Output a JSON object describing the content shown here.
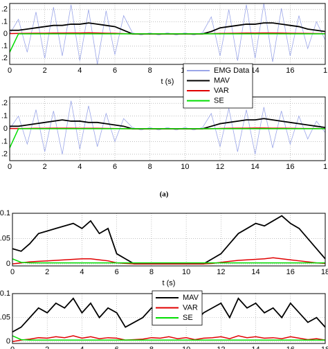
{
  "chart_data": [
    {
      "type": "line",
      "x": [
        0,
        0.5,
        1,
        1.5,
        2,
        2.5,
        3,
        3.5,
        4,
        4.5,
        5,
        5.5,
        6,
        6.5,
        7,
        7.5,
        8,
        8.5,
        9,
        9.5,
        10,
        10.5,
        11,
        11.5,
        12,
        12.5,
        13,
        13.5,
        14,
        14.5,
        15,
        15.5,
        16,
        16.5,
        17,
        17.5,
        18
      ],
      "xlim": [
        0,
        18
      ],
      "xticks": [
        0,
        2,
        4,
        6,
        8,
        10,
        12,
        14,
        16,
        {
          "value": 18,
          "label": "1"
        }
      ],
      "ylim": [
        -0.25,
        0.25
      ],
      "yticks": [
        {
          "value": 0.2,
          "label": ".2"
        },
        {
          "value": 0.1,
          "label": ".1"
        },
        0,
        {
          "value": -0.1,
          "label": ".1"
        },
        {
          "value": -0.2,
          "label": ".2"
        }
      ],
      "xlabel": "t (s)",
      "grid": true,
      "legend": "south",
      "series": [
        {
          "name": "EMG Data",
          "color": "#9aa5e8",
          "values": [
            0,
            0.12,
            -0.15,
            0.18,
            -0.2,
            0.22,
            -0.18,
            0.24,
            -0.22,
            0.2,
            -0.25,
            0.19,
            -0.17,
            0.15,
            0.01,
            -0.01,
            0.01,
            -0.01,
            0.01,
            -0.01,
            0.01,
            -0.01,
            0.01,
            0.14,
            -0.18,
            0.2,
            -0.22,
            0.24,
            -0.2,
            0.25,
            -0.23,
            0.21,
            -0.18,
            0.15,
            -0.12,
            0.1,
            -0.05
          ]
        },
        {
          "name": "MAV",
          "color": "#000000",
          "values": [
            0.03,
            0.03,
            0.04,
            0.05,
            0.06,
            0.07,
            0.07,
            0.08,
            0.08,
            0.09,
            0.08,
            0.07,
            0.06,
            0.03,
            0,
            0,
            0,
            0,
            0,
            0,
            0,
            0,
            0,
            0.02,
            0.05,
            0.06,
            0.07,
            0.08,
            0.08,
            0.09,
            0.09,
            0.08,
            0.07,
            0.06,
            0.04,
            0.03,
            0.02
          ]
        },
        {
          "name": "VAR",
          "color": "#e00000",
          "values": [
            0.003,
            0.004,
            0.005,
            0.006,
            0.006,
            0.007,
            0.007,
            0.008,
            0.008,
            0.009,
            0.008,
            0.006,
            0.005,
            0.002,
            0,
            0,
            0,
            0,
            0,
            0,
            0,
            0,
            0,
            0.002,
            0.004,
            0.005,
            0.006,
            0.007,
            0.007,
            0.008,
            0.008,
            0.007,
            0.006,
            0.005,
            0.004,
            0.003,
            0.002
          ]
        },
        {
          "name": "SE",
          "color": "#00dd00",
          "values": [
            -0.15,
            0.001,
            0.001,
            0.001,
            0.001,
            0.001,
            0.001,
            0.001,
            0.001,
            0.001,
            0.001,
            0.001,
            0.001,
            0.001,
            0.001,
            0.001,
            0.001,
            0.001,
            0.001,
            0.001,
            0.001,
            0.001,
            0.001,
            0.001,
            0.001,
            0.001,
            0.001,
            0.001,
            0.001,
            0.001,
            0.001,
            0.001,
            0.001,
            0.001,
            0.001,
            0.001,
            0.001
          ]
        }
      ]
    },
    {
      "type": "line",
      "x": [
        0,
        0.5,
        1,
        1.5,
        2,
        2.5,
        3,
        3.5,
        4,
        4.5,
        5,
        5.5,
        6,
        6.5,
        7,
        7.5,
        8,
        8.5,
        9,
        9.5,
        10,
        10.5,
        11,
        11.5,
        12,
        12.5,
        13,
        13.5,
        14,
        14.5,
        15,
        15.5,
        16,
        16.5,
        17,
        17.5,
        18
      ],
      "xlim": [
        0,
        18
      ],
      "xticks": [
        0,
        2,
        4,
        6,
        8,
        10,
        12,
        14,
        16,
        {
          "value": 18,
          "label": "1"
        }
      ],
      "ylim": [
        -0.25,
        0.25
      ],
      "yticks": [
        {
          "value": 0.2,
          "label": ".2"
        },
        {
          "value": 0.1,
          "label": ".1"
        },
        0,
        {
          "value": -0.1,
          "label": ".1"
        },
        {
          "value": -0.2,
          "label": ".2"
        }
      ],
      "grid": true,
      "series": [
        {
          "color": "#9aa5e8",
          "values": [
            0,
            0.1,
            -0.12,
            0.15,
            -0.18,
            0.14,
            -0.2,
            0.22,
            -0.16,
            0.18,
            -0.14,
            0.12,
            -0.1,
            0.08,
            0.01,
            -0.01,
            0.01,
            -0.01,
            0.01,
            -0.01,
            0.01,
            -0.01,
            0.01,
            0.12,
            -0.14,
            0.16,
            -0.18,
            0.15,
            -0.2,
            0.17,
            -0.15,
            0.14,
            -0.12,
            0.1,
            -0.08,
            0.06,
            -0.03
          ]
        },
        {
          "color": "#000000",
          "values": [
            0.02,
            0.02,
            0.03,
            0.04,
            0.05,
            0.06,
            0.07,
            0.06,
            0.06,
            0.05,
            0.05,
            0.04,
            0.03,
            0.02,
            0,
            0,
            0,
            0,
            0,
            0,
            0,
            0,
            0,
            0.02,
            0.04,
            0.05,
            0.06,
            0.07,
            0.07,
            0.08,
            0.07,
            0.06,
            0.05,
            0.04,
            0.03,
            0.02,
            0.01
          ]
        },
        {
          "color": "#e00000",
          "values": [
            0.002,
            0.002,
            0.003,
            0.004,
            0.004,
            0.005,
            0.005,
            0.005,
            0.004,
            0.004,
            0.004,
            0.003,
            0.002,
            0.001,
            0,
            0,
            0,
            0,
            0,
            0,
            0,
            0,
            0,
            0.001,
            0.003,
            0.004,
            0.005,
            0.005,
            0.006,
            0.006,
            0.005,
            0.005,
            0.004,
            0.003,
            0.002,
            0.002,
            0.001
          ]
        },
        {
          "color": "#00dd00",
          "values": [
            -0.15,
            0.001,
            0.001,
            0.001,
            0.001,
            0.001,
            0.001,
            0.001,
            0.001,
            0.001,
            0.001,
            0.001,
            0.001,
            0.001,
            0.001,
            0.001,
            0.001,
            0.001,
            0.001,
            0.001,
            0.001,
            0.001,
            0.001,
            0.001,
            0.001,
            0.001,
            0.001,
            0.001,
            0.001,
            0.001,
            0.001,
            0.001,
            0.001,
            0.001,
            0.001,
            0.001,
            0.001
          ]
        }
      ]
    },
    {
      "type": "line",
      "x": [
        0,
        0.5,
        1,
        1.5,
        2,
        2.5,
        3,
        3.5,
        4,
        4.5,
        5,
        5.5,
        6,
        6.5,
        7,
        7.5,
        8,
        8.5,
        9,
        9.5,
        10,
        10.5,
        11,
        11.5,
        12,
        12.5,
        13,
        13.5,
        14,
        14.5,
        15,
        15.5,
        16,
        16.5,
        17,
        17.5,
        18
      ],
      "xlim": [
        0,
        18
      ],
      "xticks": [
        0,
        2,
        4,
        6,
        8,
        10,
        12,
        14,
        16,
        18
      ],
      "ylim": [
        -0.004,
        0.1
      ],
      "yticks": [
        0.1,
        0.05,
        0
      ],
      "xlabel": "t (s)",
      "grid": true,
      "series": [
        {
          "color": "#000000",
          "values": [
            0.03,
            0.025,
            0.04,
            0.06,
            0.065,
            0.07,
            0.075,
            0.08,
            0.07,
            0.085,
            0.06,
            0.07,
            0.02,
            0.01,
            0,
            0,
            0,
            0,
            0,
            0,
            0,
            0,
            0,
            0.01,
            0.02,
            0.04,
            0.06,
            0.07,
            0.08,
            0.075,
            0.085,
            0.095,
            0.08,
            0.07,
            0.05,
            0.03,
            0.01
          ]
        },
        {
          "color": "#e00000",
          "values": [
            0,
            0.002,
            0.004,
            0.005,
            0.006,
            0.007,
            0.008,
            0.009,
            0.01,
            0.01,
            0.008,
            0.006,
            0.002,
            0.001,
            0,
            0,
            0,
            0,
            0,
            0,
            0,
            0,
            0,
            0.001,
            0.003,
            0.005,
            0.007,
            0.008,
            0.009,
            0.01,
            0.012,
            0.01,
            0.008,
            0.006,
            0.004,
            0.002,
            0.001
          ]
        },
        {
          "color": "#00dd00",
          "values": [
            0.01,
            0.003,
            0.002,
            0.002,
            0.002,
            0.002,
            0.002,
            0.002,
            0.002,
            0.002,
            0.002,
            0.002,
            0.002,
            0.002,
            0.002,
            0.002,
            0.002,
            0.002,
            0.002,
            0.002,
            0.002,
            0.002,
            0.002,
            0.002,
            0.002,
            0.002,
            0.002,
            0.002,
            0.002,
            0.002,
            0.002,
            0.002,
            0.002,
            0.002,
            0.002,
            0.002,
            0.002
          ]
        }
      ]
    },
    {
      "type": "line",
      "x": [
        0,
        0.5,
        1,
        1.5,
        2,
        2.5,
        3,
        3.5,
        4,
        4.5,
        5,
        5.5,
        6,
        6.5,
        7,
        7.5,
        8,
        8.5,
        9,
        9.5,
        10,
        10.5,
        11,
        11.5,
        12,
        12.5,
        13,
        13.5,
        14,
        14.5,
        15,
        15.5,
        16,
        16.5,
        17,
        17.5,
        18
      ],
      "xlim": [
        0,
        18
      ],
      "xticks": [
        0,
        2,
        4,
        6,
        8,
        10,
        12,
        14,
        16,
        18
      ],
      "ylim": [
        -0.004,
        0.1
      ],
      "yticks": [
        0.1,
        0.05,
        0
      ],
      "grid": true,
      "legend": "north",
      "series": [
        {
          "name": "MAV",
          "color": "#000000",
          "values": [
            0.02,
            0.03,
            0.05,
            0.07,
            0.06,
            0.08,
            0.07,
            0.09,
            0.06,
            0.08,
            0.05,
            0.07,
            0.06,
            0.03,
            0.04,
            0.05,
            0.07,
            0.06,
            0.08,
            0.05,
            0.07,
            0.04,
            0.06,
            0.07,
            0.08,
            0.05,
            0.09,
            0.07,
            0.08,
            0.06,
            0.07,
            0.05,
            0.08,
            0.06,
            0.04,
            0.05,
            0.03
          ]
        },
        {
          "name": "VAR",
          "color": "#e00000",
          "values": [
            0,
            0.003,
            0.005,
            0.008,
            0.007,
            0.01,
            0.008,
            0.012,
            0.007,
            0.01,
            0.006,
            0.008,
            0.007,
            0.003,
            0.004,
            0.005,
            0.008,
            0.007,
            0.01,
            0.006,
            0.008,
            0.004,
            0.007,
            0.008,
            0.01,
            0.006,
            0.012,
            0.008,
            0.01,
            0.007,
            0.008,
            0.006,
            0.01,
            0.007,
            0.004,
            0.006,
            0.003
          ]
        },
        {
          "name": "SE",
          "color": "#00dd00",
          "values": [
            0.012,
            0.004,
            0.003,
            0.003,
            0.003,
            0.003,
            0.003,
            0.003,
            0.003,
            0.003,
            0.003,
            0.003,
            0.003,
            0.003,
            0.003,
            0.003,
            0.003,
            0.003,
            0.003,
            0.003,
            0.003,
            0.003,
            0.003,
            0.003,
            0.003,
            0.003,
            0.003,
            0.003,
            0.003,
            0.003,
            0.003,
            0.003,
            0.003,
            0.003,
            0.003,
            0.003,
            0.003
          ]
        }
      ]
    }
  ],
  "caption": "(a)"
}
